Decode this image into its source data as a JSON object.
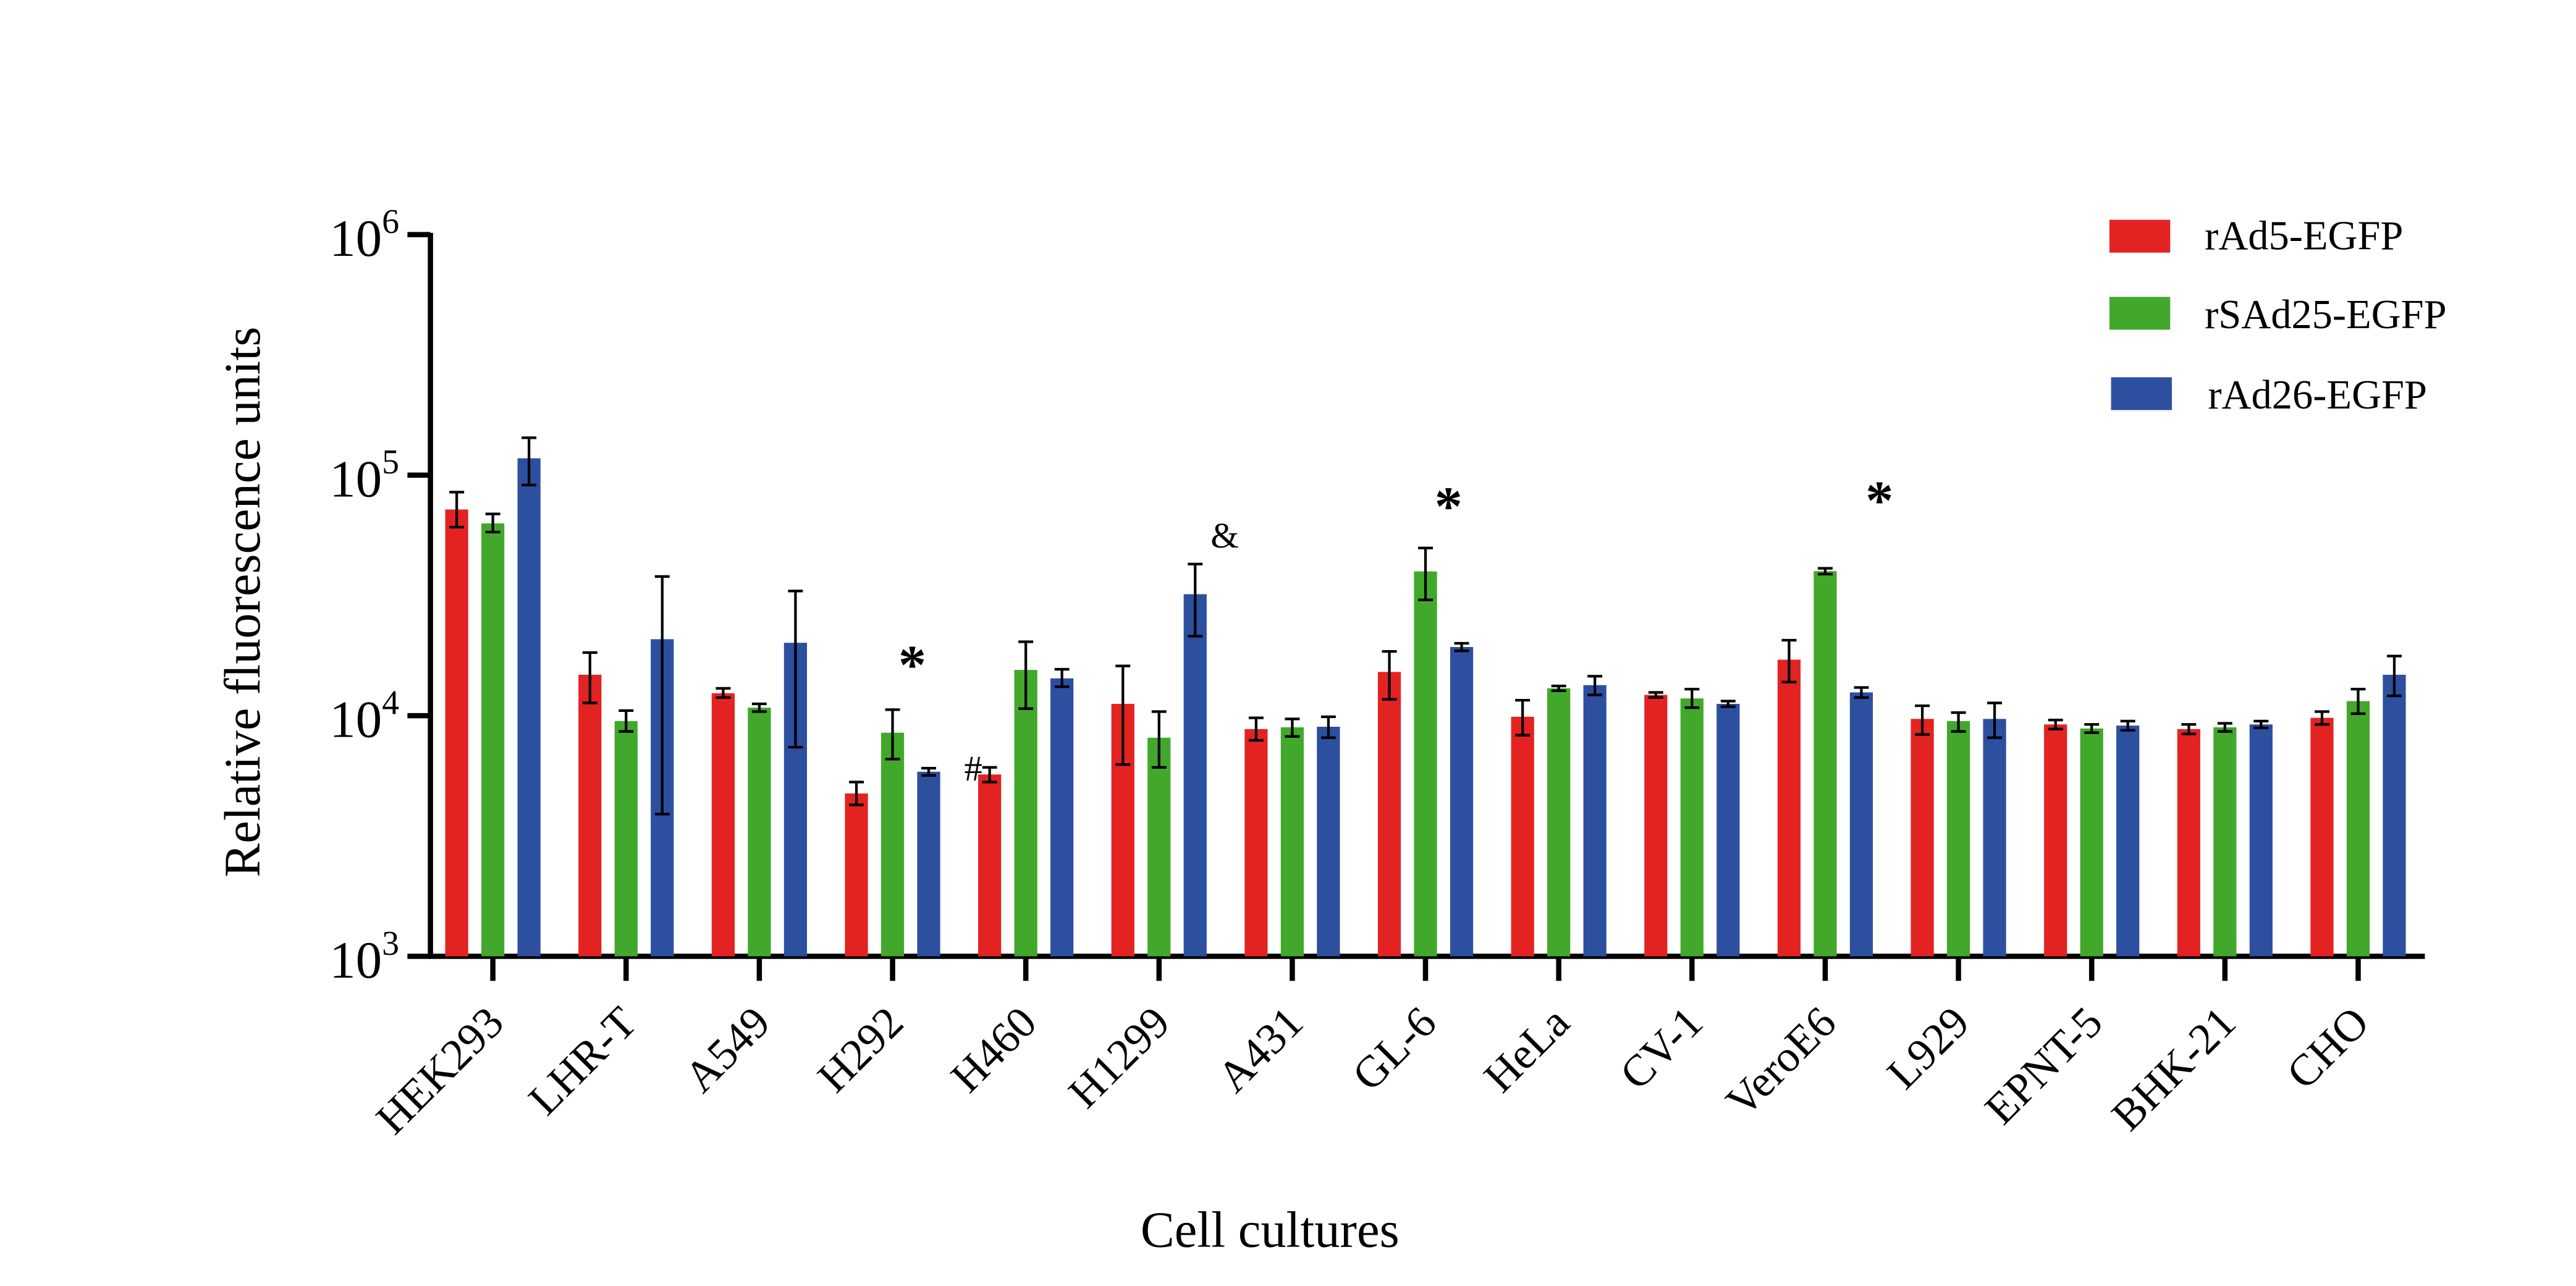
{
  "chart_data": {
    "type": "bar",
    "title": "",
    "xlabel": "Cell cultures",
    "ylabel": "Relative fluorescence units",
    "yscale": "log",
    "ylim": [
      1000,
      1000000
    ],
    "yticks": [
      {
        "value": 1000,
        "base": "10",
        "exp": "3"
      },
      {
        "value": 10000,
        "base": "10",
        "exp": "4"
      },
      {
        "value": 100000,
        "base": "10",
        "exp": "5"
      },
      {
        "value": 1000000,
        "base": "10",
        "exp": "6"
      }
    ],
    "grid": false,
    "legend_position": "top-right",
    "categories": [
      "HEK293",
      "LHR-T",
      "A549",
      "H292",
      "H460",
      "H1299",
      "A431",
      "GL-6",
      "HeLa",
      "CV-1",
      "VeroE6",
      "L929",
      "EPNT-5",
      "BHK-21",
      "CHO"
    ],
    "series": [
      {
        "name": "rAd5-EGFP",
        "color": "#e32322",
        "values": [
          72000,
          14800,
          12400,
          4750,
          5700,
          11200,
          8800,
          15200,
          9900,
          12200,
          17100,
          9700,
          9200,
          8800,
          9800
        ],
        "err_high": [
          85000,
          18300,
          13000,
          5300,
          6100,
          16100,
          9800,
          18500,
          11600,
          12500,
          20600,
          11000,
          9600,
          9200,
          10400
        ],
        "err_low": [
          60800,
          11300,
          11900,
          4260,
          5300,
          6270,
          7900,
          11700,
          8300,
          11900,
          13800,
          8350,
          8800,
          8400,
          9200
        ]
      },
      {
        "name": "rSAd25-EGFP",
        "color": "#42a82c",
        "values": [
          63000,
          9500,
          10800,
          8500,
          15500,
          8100,
          8950,
          39800,
          13000,
          11800,
          39900,
          9500,
          8850,
          8950,
          11500
        ],
        "err_high": [
          69000,
          10500,
          11200,
          10600,
          20300,
          10400,
          9700,
          49800,
          13300,
          12900,
          41000,
          10300,
          9200,
          9300,
          12900
        ],
        "err_low": [
          58000,
          8600,
          10400,
          6600,
          10700,
          6100,
          8200,
          30300,
          12700,
          10800,
          38800,
          8600,
          8500,
          8600,
          10200
        ]
      },
      {
        "name": "rAd26-EGFP",
        "color": "#2c4f9f",
        "values": [
          117500,
          20800,
          20100,
          5850,
          14300,
          32000,
          9000,
          19300,
          13400,
          11200,
          12500,
          9700,
          9100,
          9200,
          14800
        ],
        "err_high": [
          143000,
          37900,
          33000,
          6050,
          15600,
          42700,
          9900,
          20000,
          14600,
          11500,
          13100,
          11300,
          9500,
          9500,
          17700
        ],
        "err_low": [
          91000,
          3900,
          7400,
          5650,
          13200,
          21400,
          8100,
          18600,
          12200,
          10900,
          11900,
          8100,
          8700,
          8900,
          12100
        ]
      }
    ],
    "annotations": [
      {
        "text": "*",
        "category": "H292",
        "near_series": "rSAd25-EGFP"
      },
      {
        "text": "#",
        "category": "H460",
        "near_series": "rAd5-EGFP"
      },
      {
        "text": "&",
        "category": "H1299",
        "near_series": "rAd26-EGFP"
      },
      {
        "text": "*",
        "category": "GL-6",
        "near_series": "rSAd25-EGFP"
      },
      {
        "text": "*",
        "category": "VeroE6",
        "near_series": "rSAd25-EGFP"
      }
    ]
  }
}
